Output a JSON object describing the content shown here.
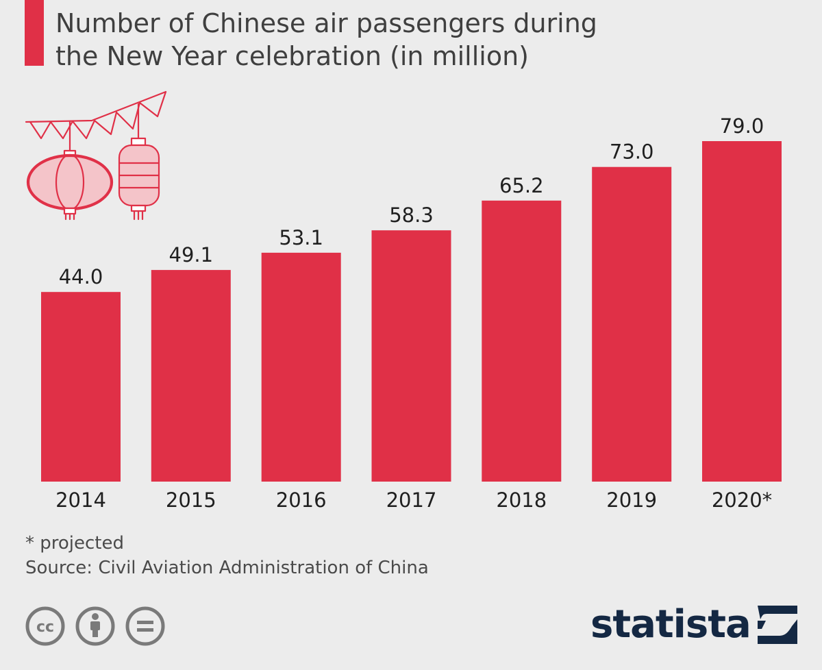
{
  "chart_data": {
    "type": "bar",
    "title": "Number of Chinese air passengers during the New Year celebration (in million)",
    "categories": [
      "2014",
      "2015",
      "2016",
      "2017",
      "2018",
      "2019",
      "2020*"
    ],
    "values": [
      44.0,
      49.1,
      53.1,
      58.3,
      65.2,
      73.0,
      79.0
    ],
    "value_labels": [
      "44.0",
      "49.1",
      "53.1",
      "58.3",
      "65.2",
      "73.0",
      "79.0"
    ],
    "xlabel": "",
    "ylabel": "",
    "ylim": [
      0,
      79.0
    ],
    "grid": false,
    "legend": "none",
    "bar_color": "#e03047"
  },
  "notes": {
    "footnote": "* projected",
    "source": "Source: Civil Aviation Administration of China"
  },
  "branding": {
    "logo_text": "statista",
    "license_icons": [
      "creative-commons-icon",
      "attribution-icon",
      "no-derivatives-icon"
    ]
  },
  "colors": {
    "accent": "#e03047",
    "background": "#ececec",
    "brand": "#142843"
  }
}
